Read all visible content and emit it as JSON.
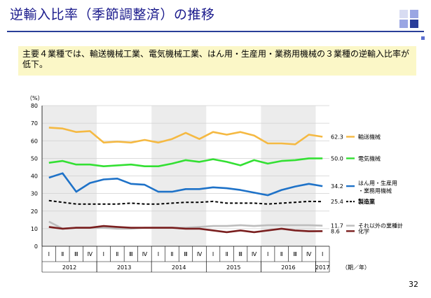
{
  "page": {
    "title": "逆輸入比率（季節調整済）の推移",
    "summary": "主要４業種では、輸送機械工業、電気機械工業、はん用・生産用・業務用機械の３業種の逆輸入比率が低下。",
    "page_number": "32"
  },
  "chart_data": {
    "type": "line",
    "ylabel": "（%）",
    "ylim": [
      0,
      80
    ],
    "yticks": [
      0,
      10,
      20,
      30,
      40,
      50,
      60,
      70,
      80
    ],
    "axis_unit_label": "（期／年）",
    "quarters": [
      "Ⅰ",
      "Ⅱ",
      "Ⅲ",
      "Ⅳ",
      "Ⅰ",
      "Ⅱ",
      "Ⅲ",
      "Ⅳ",
      "Ⅰ",
      "Ⅱ",
      "Ⅲ",
      "Ⅳ",
      "Ⅰ",
      "Ⅱ",
      "Ⅲ",
      "Ⅳ",
      "Ⅰ",
      "Ⅱ",
      "Ⅲ",
      "Ⅳ",
      "Ⅰ"
    ],
    "years": [
      {
        "label": "2012",
        "start": 0,
        "end": 3,
        "shaded": true
      },
      {
        "label": "2013",
        "start": 4,
        "end": 7,
        "shaded": false
      },
      {
        "label": "2014",
        "start": 8,
        "end": 11,
        "shaded": true
      },
      {
        "label": "2015",
        "start": 12,
        "end": 15,
        "shaded": false
      },
      {
        "label": "2016",
        "start": 16,
        "end": 19,
        "shaded": true
      },
      {
        "label": "2017",
        "start": 20,
        "end": 20,
        "shaded": false
      }
    ],
    "grid": true,
    "series": [
      {
        "name": "輸送機械",
        "color": "#f5b942",
        "dash": false,
        "bold": false,
        "end_label": "62.3",
        "values": [
          67.5,
          67,
          65,
          65.5,
          59,
          59.5,
          59,
          60.5,
          59,
          61,
          64.5,
          61,
          65,
          63.5,
          65,
          63,
          58.5,
          58.5,
          58,
          63.5,
          62.3
        ]
      },
      {
        "name": "電気機械",
        "color": "#33e033",
        "dash": false,
        "bold": false,
        "end_label": "50.0",
        "values": [
          47.5,
          48.5,
          46.5,
          46.5,
          45.5,
          46,
          46.5,
          45.5,
          45.5,
          47,
          49,
          48,
          49.5,
          48,
          46,
          49,
          47,
          48.5,
          49,
          50,
          50.0
        ]
      },
      {
        "name": "はん用・生産用\n・業務用機械",
        "color": "#1e72c8",
        "dash": false,
        "bold": false,
        "end_label": "34.2",
        "values": [
          39,
          41.5,
          31,
          36,
          38,
          38.5,
          35.5,
          35,
          31,
          31,
          32.5,
          32.5,
          33.5,
          33,
          32,
          30.5,
          29,
          32,
          34,
          35.5,
          34.2
        ]
      },
      {
        "name": "製造業",
        "color": "#000000",
        "dash": true,
        "bold": true,
        "end_label": "25.4",
        "values": [
          26,
          25,
          24,
          24,
          24,
          24,
          24.5,
          24,
          24,
          24.5,
          25,
          25,
          25.5,
          24.5,
          24.5,
          24.5,
          24,
          24.5,
          25,
          25.5,
          25.4
        ]
      },
      {
        "name": "それ以外の業種計",
        "color": "#bdbdbd",
        "dash": false,
        "bold": false,
        "end_label": "11.7",
        "values": [
          14,
          10,
          10.5,
          10.5,
          10.5,
          10,
          10,
          10.5,
          10.5,
          10.5,
          10.5,
          11,
          11.5,
          11.5,
          12,
          11.5,
          12,
          12,
          12,
          12,
          11.7
        ]
      },
      {
        "name": "化学",
        "color": "#7a1f1f",
        "dash": false,
        "bold": false,
        "end_label": "8.6",
        "values": [
          11,
          10,
          10.5,
          10.5,
          11.5,
          11,
          10.5,
          10.5,
          10.5,
          10.5,
          10,
          10,
          9,
          8,
          9,
          8,
          9,
          10,
          9,
          8.5,
          8.6
        ]
      }
    ]
  }
}
